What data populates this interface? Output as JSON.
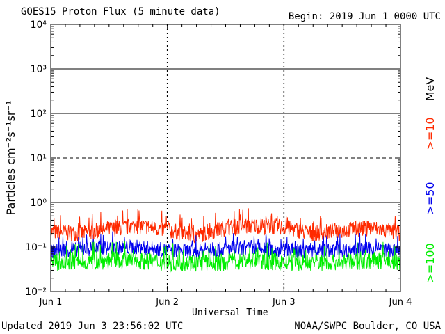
{
  "header": {
    "title": "GOES15 Proton Flux (5 minute data)",
    "begin": "Begin: 2019 Jun 1 0000 UTC"
  },
  "footer": {
    "updated": "Updated 2019 Jun  3 23:56:02 UTC",
    "credit": "NOAA/SWPC Boulder, CO USA"
  },
  "chart_data": {
    "type": "line",
    "title": "GOES15 Proton Flux (5 minute data)",
    "xlabel": "Universal Time",
    "ylabel": "Particles cm⁻²s⁻¹sr⁻¹",
    "yscale": "log",
    "ylim": [
      0.01,
      10000
    ],
    "ytick_labels": [
      "10⁴",
      "10³",
      "10²",
      "10¹",
      "10⁰",
      "10⁻¹",
      "10⁻²"
    ],
    "x_tick_labels": [
      "Jun 1",
      "Jun 2",
      "Jun 3",
      "Jun 4"
    ],
    "xlim_days": [
      0,
      3
    ],
    "reference_lines": [
      {
        "y": 1000,
        "style": "solid"
      },
      {
        "y": 100,
        "style": "solid"
      },
      {
        "y": 10,
        "style": "dashed"
      },
      {
        "y": 1,
        "style": "solid"
      }
    ],
    "energy_label": "MeV",
    "series": [
      {
        "name": ">=10",
        "color": "#ff2a00",
        "x": [
          0,
          0.25,
          0.5,
          0.75,
          1.0,
          1.25,
          1.5,
          1.75,
          2.0,
          2.25,
          2.5,
          2.75,
          3.0
        ],
        "y": [
          0.22,
          0.2,
          0.25,
          0.3,
          0.24,
          0.18,
          0.27,
          0.3,
          0.28,
          0.2,
          0.24,
          0.27,
          0.2
        ]
      },
      {
        "name": ">=50",
        "color": "#0000ee",
        "x": [
          0,
          0.25,
          0.5,
          0.75,
          1.0,
          1.25,
          1.5,
          1.75,
          2.0,
          2.25,
          2.5,
          2.75,
          3.0
        ],
        "y": [
          0.08,
          0.09,
          0.095,
          0.1,
          0.085,
          0.08,
          0.09,
          0.09,
          0.085,
          0.08,
          0.085,
          0.09,
          0.08
        ]
      },
      {
        "name": ">=100",
        "color": "#00ee00",
        "x": [
          0,
          0.25,
          0.5,
          0.75,
          1.0,
          1.25,
          1.5,
          1.75,
          2.0,
          2.25,
          2.5,
          2.75,
          3.0
        ],
        "y": [
          0.045,
          0.045,
          0.05,
          0.05,
          0.045,
          0.045,
          0.045,
          0.05,
          0.045,
          0.045,
          0.045,
          0.05,
          0.045
        ]
      }
    ]
  }
}
